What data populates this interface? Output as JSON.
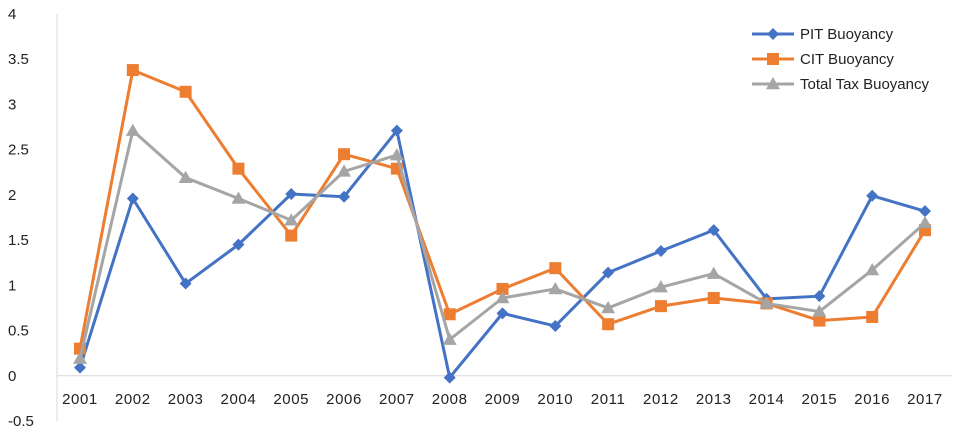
{
  "chart_data": {
    "type": "line",
    "title": "",
    "xlabel": "",
    "ylabel": "",
    "ylim": [
      -0.5,
      4
    ],
    "yticks": [
      -0.5,
      0,
      0.5,
      1,
      1.5,
      2,
      2.5,
      3,
      3.5,
      4
    ],
    "ytick_labels": [
      "-0.5",
      "0",
      "0.5",
      "1",
      "1.5",
      "2",
      "2.5",
      "3",
      "3.5",
      "4"
    ],
    "grid": false,
    "legend_position": "top-right",
    "categories": [
      "2001",
      "2002",
      "2003",
      "2004",
      "2005",
      "2006",
      "2007",
      "2008",
      "2009",
      "2010",
      "2011",
      "2012",
      "2013",
      "2014",
      "2015",
      "2016",
      "2017"
    ],
    "series": [
      {
        "name": "PIT Buoyancy",
        "color": "#4472C4",
        "marker": "diamond",
        "values": [
          0.09,
          1.96,
          1.02,
          1.45,
          2.01,
          1.98,
          2.71,
          -0.02,
          0.69,
          0.55,
          1.14,
          1.38,
          1.61,
          0.85,
          0.88,
          1.99,
          1.82
        ]
      },
      {
        "name": "CIT Buoyancy",
        "color": "#ED7D31",
        "marker": "square",
        "values": [
          0.3,
          3.38,
          3.14,
          2.29,
          1.55,
          2.45,
          2.29,
          0.68,
          0.96,
          1.19,
          0.57,
          0.77,
          0.86,
          0.8,
          0.61,
          0.65,
          1.61
        ]
      },
      {
        "name": "Total Tax Buoyancy",
        "color": "#A5A5A5",
        "marker": "triangle",
        "values": [
          0.19,
          2.71,
          2.19,
          1.96,
          1.72,
          2.26,
          2.44,
          0.4,
          0.86,
          0.96,
          0.75,
          0.98,
          1.13,
          0.8,
          0.71,
          1.17,
          1.69
        ]
      }
    ]
  }
}
